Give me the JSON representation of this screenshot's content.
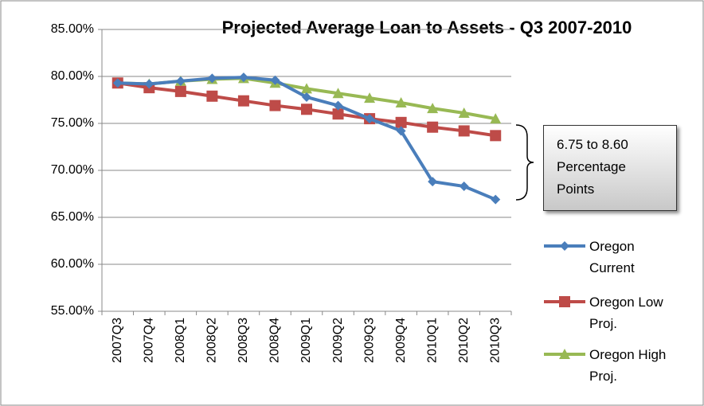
{
  "chart_data": {
    "type": "line",
    "title": "Projected Average Loan to Assets - Q3 2007-2010",
    "annotation": "6.75 to 8.60 Percentage Points",
    "categories": [
      "2007Q3",
      "2007Q4",
      "2008Q1",
      "2008Q2",
      "2008Q3",
      "2008Q4",
      "2009Q1",
      "2009Q2",
      "2009Q3",
      "2009Q4",
      "2010Q1",
      "2010Q2",
      "2010Q3"
    ],
    "series": [
      {
        "name": "Oregon Current",
        "color": "#4a7ebb",
        "marker": "diamond",
        "values": [
          79.3,
          79.2,
          79.5,
          79.8,
          79.9,
          79.6,
          77.8,
          76.9,
          75.5,
          74.2,
          68.8,
          68.3,
          66.9
        ]
      },
      {
        "name": "Oregon Low Proj.",
        "color": "#be4b48",
        "marker": "square",
        "values": [
          79.3,
          78.8,
          78.4,
          77.9,
          77.4,
          76.9,
          76.5,
          76.0,
          75.5,
          75.1,
          74.6,
          74.2,
          73.7
        ]
      },
      {
        "name": "Oregon High Proj.",
        "color": "#98b954",
        "marker": "triangle",
        "values": [
          79.3,
          79.2,
          79.5,
          79.7,
          79.8,
          79.3,
          78.7,
          78.2,
          77.7,
          77.2,
          76.6,
          76.1,
          75.5
        ]
      }
    ],
    "ylim": [
      55,
      85
    ],
    "yticks": [
      {
        "value": 55,
        "label": "55.00%"
      },
      {
        "value": 60,
        "label": "60.00%"
      },
      {
        "value": 65,
        "label": "65.00%"
      },
      {
        "value": 70,
        "label": "70.00%"
      },
      {
        "value": 75,
        "label": "75.00%"
      },
      {
        "value": 80,
        "label": "80.00%"
      },
      {
        "value": 85,
        "label": "85.00%"
      }
    ],
    "grid": true,
    "legend": "right"
  }
}
